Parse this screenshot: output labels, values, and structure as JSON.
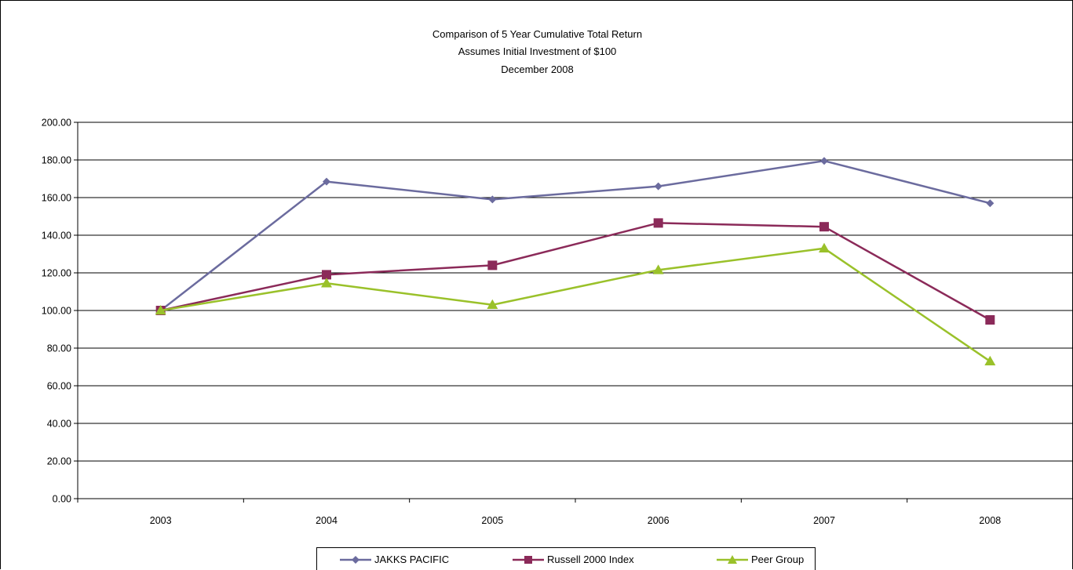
{
  "chart_data": {
    "type": "line",
    "title": "Comparison of 5 Year Cumulative Total Return",
    "subtitle_lines": [
      "Assumes Initial Investment of $100",
      "December 2008"
    ],
    "x": [
      "2003",
      "2004",
      "2005",
      "2006",
      "2007",
      "2008"
    ],
    "y_tick_labels": [
      "0.00",
      "20.00",
      "40.00",
      "60.00",
      "80.00",
      "100.00",
      "120.00",
      "140.00",
      "160.00",
      "180.00",
      "200.00"
    ],
    "ylim": [
      0,
      200
    ],
    "ytick_step": 20,
    "grid": "horizontal",
    "legend_position": "bottom",
    "series": [
      {
        "name": "JAKKS PACIFIC",
        "values": [
          100,
          168.5,
          159,
          166,
          179.5,
          157
        ],
        "color": "#6b6b9e",
        "marker": "diamond"
      },
      {
        "name": "Russell 2000 Index",
        "values": [
          100,
          119,
          124,
          146.5,
          144.5,
          95
        ],
        "color": "#8b2a59",
        "marker": "square"
      },
      {
        "name": "Peer Group",
        "values": [
          100,
          114.5,
          103,
          121.5,
          133,
          73
        ],
        "color": "#9ac12a",
        "marker": "triangle"
      }
    ]
  }
}
